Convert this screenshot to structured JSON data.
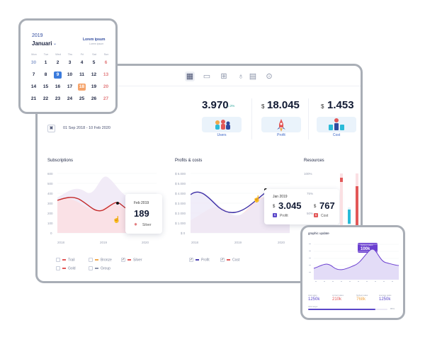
{
  "main": {
    "date_range": "01 Sep 2018 - 10 Feb 2020",
    "stats": [
      {
        "currency": "",
        "value": "3.970",
        "delta": "2%",
        "label": "Users"
      },
      {
        "currency": "$",
        "value": "18.045",
        "label": "Profit"
      },
      {
        "currency": "$",
        "value": "1.453",
        "label": "Cost"
      }
    ],
    "subscriptions": {
      "title": "Subscriptions",
      "y_ticks": [
        "600",
        "500",
        "400",
        "300",
        "200",
        "100",
        "0"
      ],
      "x_ticks": [
        "2018",
        "2019",
        "2020"
      ],
      "legend": [
        {
          "label": "Trail",
          "color": "#e25858",
          "checked": false
        },
        {
          "label": "Bronze",
          "color": "#f0a74a",
          "checked": false
        },
        {
          "label": "Silver",
          "color": "#e25858",
          "checked": true
        },
        {
          "label": "Gold",
          "color": "#e25858",
          "checked": false
        },
        {
          "label": "Group",
          "color": "#8a93a8",
          "checked": false
        }
      ],
      "tooltip": {
        "date": "Feb 2019",
        "value": "189",
        "label": "Silver"
      }
    },
    "profits": {
      "title": "Profits & costs",
      "y_ticks": [
        "$ 6.000",
        "$ 5.000",
        "$ 4.000",
        "$ 3.000",
        "$ 2.000",
        "$ 1.000",
        "$ 0"
      ],
      "x_ticks": [
        "2018",
        "2019",
        "2020"
      ],
      "legend": [
        {
          "label": "Profit",
          "color": "#4a3fb0",
          "checked": true
        },
        {
          "label": "Cost",
          "color": "#e25858",
          "checked": true
        }
      ],
      "tooltip": {
        "date": "Jan 2019",
        "profit_currency": "$",
        "profit_value": "3.045",
        "profit_label": "Profit",
        "cost_currency": "$",
        "cost_value": "767",
        "cost_label": "Cost"
      }
    },
    "resources": {
      "title": "Resources",
      "y_ticks": [
        "100%",
        "75%",
        "50%"
      ]
    }
  },
  "calendar": {
    "year": "2019",
    "month": "Januari",
    "lorem_title": "Lorem ipsum",
    "lorem_sub": "Lorem ipsum",
    "dow": [
      "Mon",
      "Tue",
      "Wed",
      "Thu",
      "Fri",
      "Sat",
      "Sun"
    ],
    "weeks": [
      [
        "30",
        "1",
        "2",
        "3",
        "4",
        "5",
        "6"
      ],
      [
        "7",
        "8",
        "9",
        "10",
        "11",
        "12",
        "13"
      ],
      [
        "14",
        "15",
        "16",
        "17",
        "18",
        "19",
        "20"
      ],
      [
        "21",
        "22",
        "23",
        "24",
        "25",
        "26",
        "27"
      ]
    ],
    "selected": "9",
    "highlight": "18"
  },
  "graphic": {
    "title": "graphic update",
    "tooltip_label": "highest sales",
    "tooltip_value": "100k",
    "stats": [
      {
        "label": "total sales",
        "value": "1250k",
        "color": "#5a47c9"
      },
      {
        "label": "current sales",
        "value": "210k",
        "color": "#e25858"
      },
      {
        "label": "highest sales",
        "value": "768k",
        "color": "#f0a74a"
      },
      {
        "label": "average sales",
        "value": "1250k",
        "color": "#5a47c9"
      }
    ],
    "progress_label": "click target",
    "progress_value": "85%",
    "progress_fraction": 0.85
  },
  "colors": {
    "accent": "#5a47c9",
    "red": "#e25858",
    "orange": "#f0a74a",
    "blue": "#2f4a9e",
    "cyan": "#2bbbd8"
  }
}
